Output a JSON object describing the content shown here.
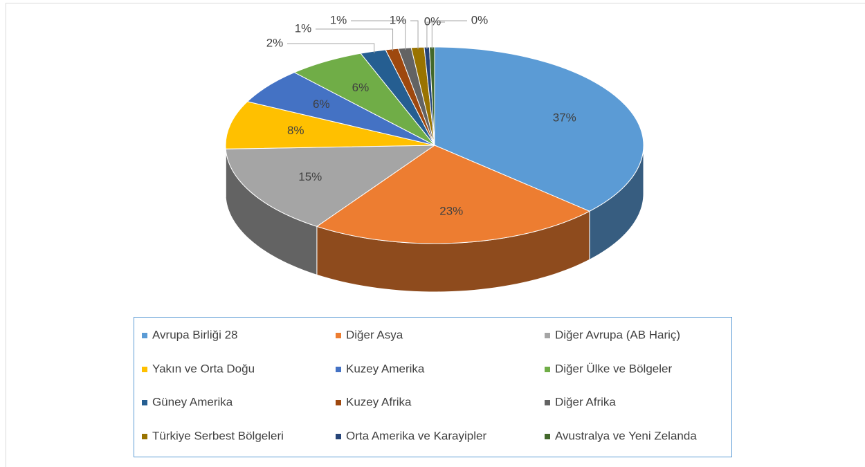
{
  "chart_data": {
    "type": "pie3d",
    "categories": [
      "Avrupa Birliği 28",
      "Diğer Asya",
      "Diğer Avrupa (AB Hariç)",
      "Yakın ve Orta Doğu",
      "Kuzey Amerika",
      "Diğer Ülke ve Bölgeler",
      "Güney Amerika",
      "Kuzey Afrika",
      "Diğer Afrika",
      "Türkiye Serbest Bölgeleri",
      "Orta Amerika ve Karayipler",
      "Avustralya ve Yeni Zelanda"
    ],
    "values": [
      37,
      23,
      15,
      8,
      6,
      6,
      2,
      1,
      1,
      1,
      0.4,
      0.4
    ],
    "value_labels": [
      "37%",
      "23%",
      "15%",
      "8%",
      "6%",
      "6%",
      "2%",
      "1%",
      "1%",
      "1%",
      "0%",
      "0%"
    ],
    "colors": [
      "#5b9bd5",
      "#ed7d31",
      "#a5a5a5",
      "#ffc000",
      "#4472c4",
      "#70ad47",
      "#255e91",
      "#9e480e",
      "#636363",
      "#997300",
      "#264478",
      "#43682b"
    ],
    "legend": "bottom"
  }
}
